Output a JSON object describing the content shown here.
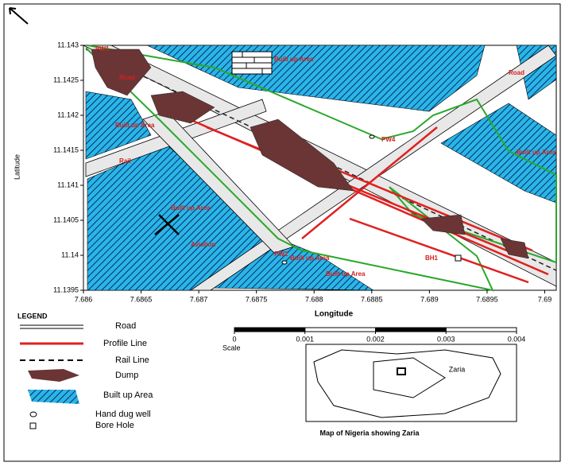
{
  "map": {
    "xlim": [
      7.686,
      7.6901
    ],
    "ylim": [
      11.1395,
      11.143
    ],
    "xticks": [
      7.686,
      7.6865,
      7.687,
      7.6875,
      7.688,
      7.6885,
      7.689,
      7.6895,
      7.69
    ],
    "yticks": [
      11.143,
      11.1425,
      11.142,
      11.1415,
      11.141,
      11.1405,
      11.14,
      11.1395
    ],
    "xlabel": "Longitude",
    "ylabel": "Latitude",
    "labels": [
      "PW1",
      "Built up Area",
      "Road",
      "Road",
      "Built up Area",
      "PW4",
      "Built up Area",
      "Rail",
      "Built up Area",
      "Aviation",
      "PW2",
      "Built up Area",
      "Built up Area",
      "BH1"
    ]
  },
  "legend": {
    "title": "LEGEND",
    "items": [
      "Road",
      "Profile Line",
      "Rail Line",
      "Dump",
      "Built up Area",
      "Hand dug well",
      "Bore Hole"
    ]
  },
  "scale": {
    "label": "Scale",
    "ticks": [
      0,
      0.001,
      0.002,
      0.003,
      0.004
    ]
  },
  "inset": {
    "place": "Zaria",
    "caption": "Map of Nigeria showing Zaria"
  }
}
